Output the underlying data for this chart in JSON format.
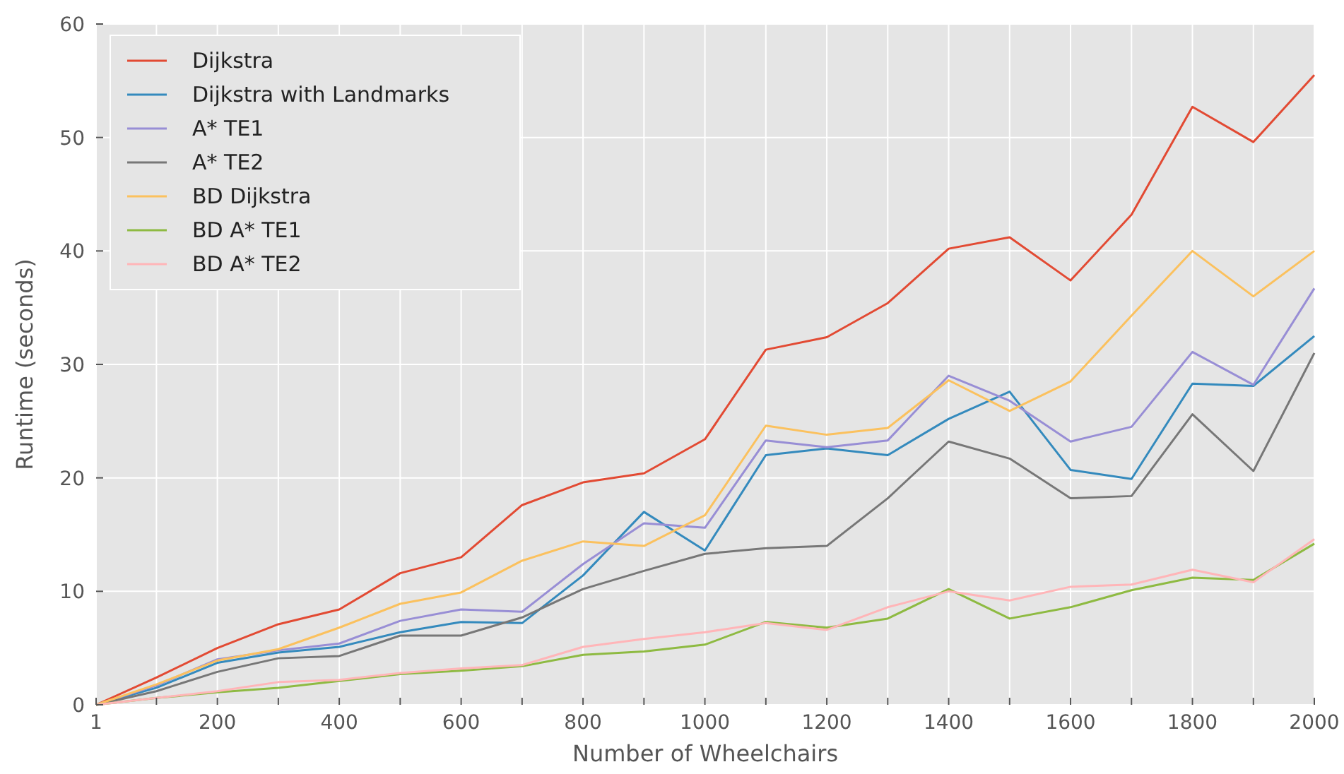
{
  "chart_data": {
    "type": "line",
    "xlabel": "Number of Wheelchairs",
    "ylabel": "Runtime (seconds)",
    "x": [
      1,
      100,
      200,
      300,
      400,
      500,
      600,
      700,
      800,
      900,
      1000,
      1100,
      1200,
      1300,
      1400,
      1500,
      1600,
      1700,
      1800,
      1900,
      2000
    ],
    "xlim": [
      1,
      2000
    ],
    "xticks": [
      1,
      {
        "value": 100,
        "label": null
      },
      200,
      {
        "value": 300,
        "label": null
      },
      400,
      {
        "value": 500,
        "label": null
      },
      600,
      {
        "value": 700,
        "label": null
      },
      800,
      {
        "value": 900,
        "label": null
      },
      1000,
      {
        "value": 1100,
        "label": null
      },
      1200,
      {
        "value": 1300,
        "label": null
      },
      1400,
      {
        "value": 1500,
        "label": null
      },
      1600,
      {
        "value": 1700,
        "label": null
      },
      1800,
      {
        "value": 1900,
        "label": null
      },
      2000
    ],
    "ylim": [
      0,
      60
    ],
    "yticks": [
      0,
      10,
      20,
      30,
      40,
      50,
      60
    ],
    "grid": true,
    "legend": "top left",
    "line_style": "solid",
    "marker": "none",
    "series": [
      {
        "name": "Dijkstra",
        "color": "#e24a33",
        "values": [
          0,
          2.4,
          5.0,
          7.1,
          8.4,
          11.6,
          13.0,
          17.6,
          19.6,
          20.4,
          23.4,
          31.3,
          32.4,
          35.4,
          40.2,
          41.2,
          37.4,
          43.2,
          52.7,
          49.6,
          55.5
        ]
      },
      {
        "name": "Dijkstra with Landmarks",
        "color": "#348abd",
        "values": [
          0,
          1.5,
          3.7,
          4.6,
          5.1,
          6.4,
          7.3,
          7.2,
          11.4,
          17.0,
          13.6,
          22.0,
          22.6,
          22.0,
          25.2,
          27.6,
          20.7,
          19.9,
          28.3,
          28.1,
          32.5
        ]
      },
      {
        "name": "A* TE1",
        "color": "#988ed5",
        "values": [
          0,
          1.7,
          4.0,
          4.8,
          5.4,
          7.4,
          8.4,
          8.2,
          12.4,
          16.0,
          15.6,
          23.3,
          22.7,
          23.3,
          29.0,
          26.8,
          23.2,
          24.5,
          31.1,
          28.2,
          36.7
        ]
      },
      {
        "name": "A* TE2",
        "color": "#777777",
        "values": [
          0,
          1.2,
          2.9,
          4.1,
          4.3,
          6.1,
          6.1,
          7.7,
          10.2,
          11.8,
          13.3,
          13.8,
          14.0,
          18.2,
          23.2,
          21.7,
          18.2,
          18.4,
          25.6,
          20.6,
          31.0
        ]
      },
      {
        "name": "BD Dijkstra",
        "color": "#fbc15e",
        "values": [
          0,
          1.8,
          3.9,
          4.9,
          6.8,
          8.9,
          9.9,
          12.7,
          14.4,
          14.0,
          16.7,
          24.6,
          23.8,
          24.4,
          28.6,
          25.9,
          28.5,
          34.3,
          40.0,
          36.0,
          40.0
        ]
      },
      {
        "name": "BD A* TE1",
        "color": "#8eba42",
        "values": [
          0,
          0.6,
          1.1,
          1.5,
          2.1,
          2.7,
          3.0,
          3.4,
          4.4,
          4.7,
          5.3,
          7.3,
          6.8,
          7.6,
          10.2,
          7.6,
          8.6,
          10.1,
          11.2,
          11.0,
          14.2
        ]
      },
      {
        "name": "BD A* TE2",
        "color": "#ffb5b8",
        "values": [
          0,
          0.6,
          1.2,
          2.0,
          2.2,
          2.8,
          3.2,
          3.5,
          5.1,
          5.8,
          6.4,
          7.2,
          6.6,
          8.6,
          10.0,
          9.2,
          10.4,
          10.6,
          11.9,
          10.8,
          14.6
        ]
      }
    ]
  }
}
